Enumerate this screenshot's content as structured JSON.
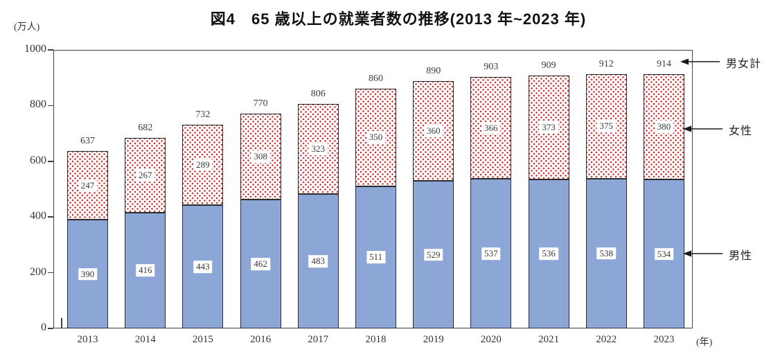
{
  "chart_data": {
    "type": "bar",
    "stacked": true,
    "title": "図4　65 歳以上の就業者数の推移(2013 年~2023 年)",
    "y_unit_label": "(万人)",
    "x_unit_label": "(年)",
    "categories": [
      "2013",
      "2014",
      "2015",
      "2016",
      "2017",
      "2018",
      "2019",
      "2020",
      "2021",
      "2022",
      "2023"
    ],
    "series": [
      {
        "name": "男性",
        "values": [
          390,
          416,
          443,
          462,
          483,
          511,
          529,
          537,
          536,
          538,
          534
        ]
      },
      {
        "name": "女性",
        "values": [
          247,
          267,
          289,
          308,
          323,
          350,
          360,
          366,
          373,
          375,
          380
        ]
      }
    ],
    "totals": {
      "name": "男女計",
      "values": [
        637,
        682,
        732,
        770,
        806,
        860,
        890,
        903,
        909,
        912,
        914
      ]
    },
    "ylim": [
      0,
      1000
    ],
    "yticks": [
      0,
      200,
      400,
      600,
      800,
      1000
    ],
    "grid": false,
    "legend_position": "right-annotations",
    "legend_labels": {
      "total": "男女計",
      "female": "女性",
      "male": "男性"
    },
    "colors": {
      "male_fill": "#8CA6D5",
      "female_dot": "#CC3333",
      "bar_border": "#2B2B2B",
      "axis": "#404040",
      "text": "#333333"
    }
  }
}
